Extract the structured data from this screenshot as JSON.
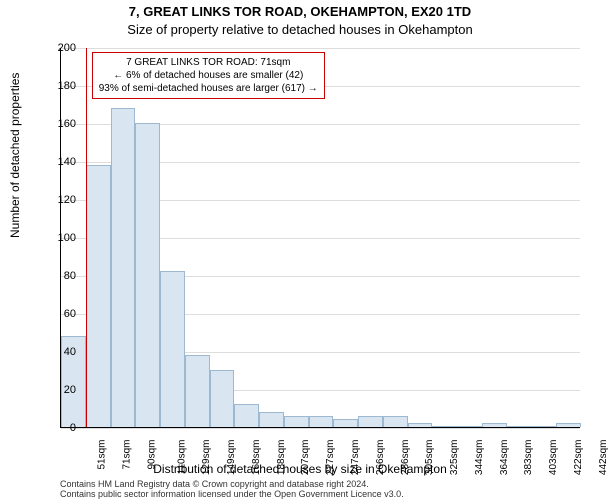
{
  "chart": {
    "type": "histogram",
    "title_main": "7, GREAT LINKS TOR ROAD, OKEHAMPTON, EX20 1TD",
    "title_sub": "Size of property relative to detached houses in Okehampton",
    "title_fontsize": 13,
    "subtitle_fontsize": 13,
    "xlabel": "Distribution of detached houses by size in Okehampton",
    "ylabel": "Number of detached properties",
    "axis_label_fontsize": 12,
    "tick_fontsize": 11,
    "xtick_fontsize": 10,
    "background_color": "#ffffff",
    "grid_color": "#dddddd",
    "axis_color": "#000000",
    "bar_fill": "#d9e6f2",
    "bar_stroke": "#9db8d1",
    "bar_stroke_width": 1,
    "marker_color": "#cc0000",
    "marker_width": 1.5,
    "marker_x_value": 71,
    "annotation_border": "#cc0000",
    "annotation_bg": "#ffffff",
    "ylim": [
      0,
      200
    ],
    "ytick_step": 20,
    "yticks": [
      0,
      20,
      40,
      60,
      80,
      100,
      120,
      140,
      160,
      180,
      200
    ],
    "x_categories": [
      "51sqm",
      "71sqm",
      "90sqm",
      "110sqm",
      "129sqm",
      "149sqm",
      "168sqm",
      "188sqm",
      "207sqm",
      "227sqm",
      "247sqm",
      "266sqm",
      "286sqm",
      "305sqm",
      "325sqm",
      "344sqm",
      "364sqm",
      "383sqm",
      "403sqm",
      "422sqm",
      "442sqm"
    ],
    "bar_values": [
      48,
      138,
      168,
      160,
      82,
      38,
      30,
      12,
      8,
      6,
      6,
      4,
      6,
      6,
      2,
      0,
      0,
      2,
      0,
      0,
      2
    ],
    "bar_width_ratio": 1.0,
    "annotation_lines": [
      "7 GREAT LINKS TOR ROAD: 71sqm",
      "← 6% of detached houses are smaller (42)",
      "93% of semi-detached houses are larger (617) →"
    ],
    "caption_line1": "Contains HM Land Registry data © Crown copyright and database right 2024.",
    "caption_line2": "Contains public sector information licensed under the Open Government Licence v3.0."
  }
}
